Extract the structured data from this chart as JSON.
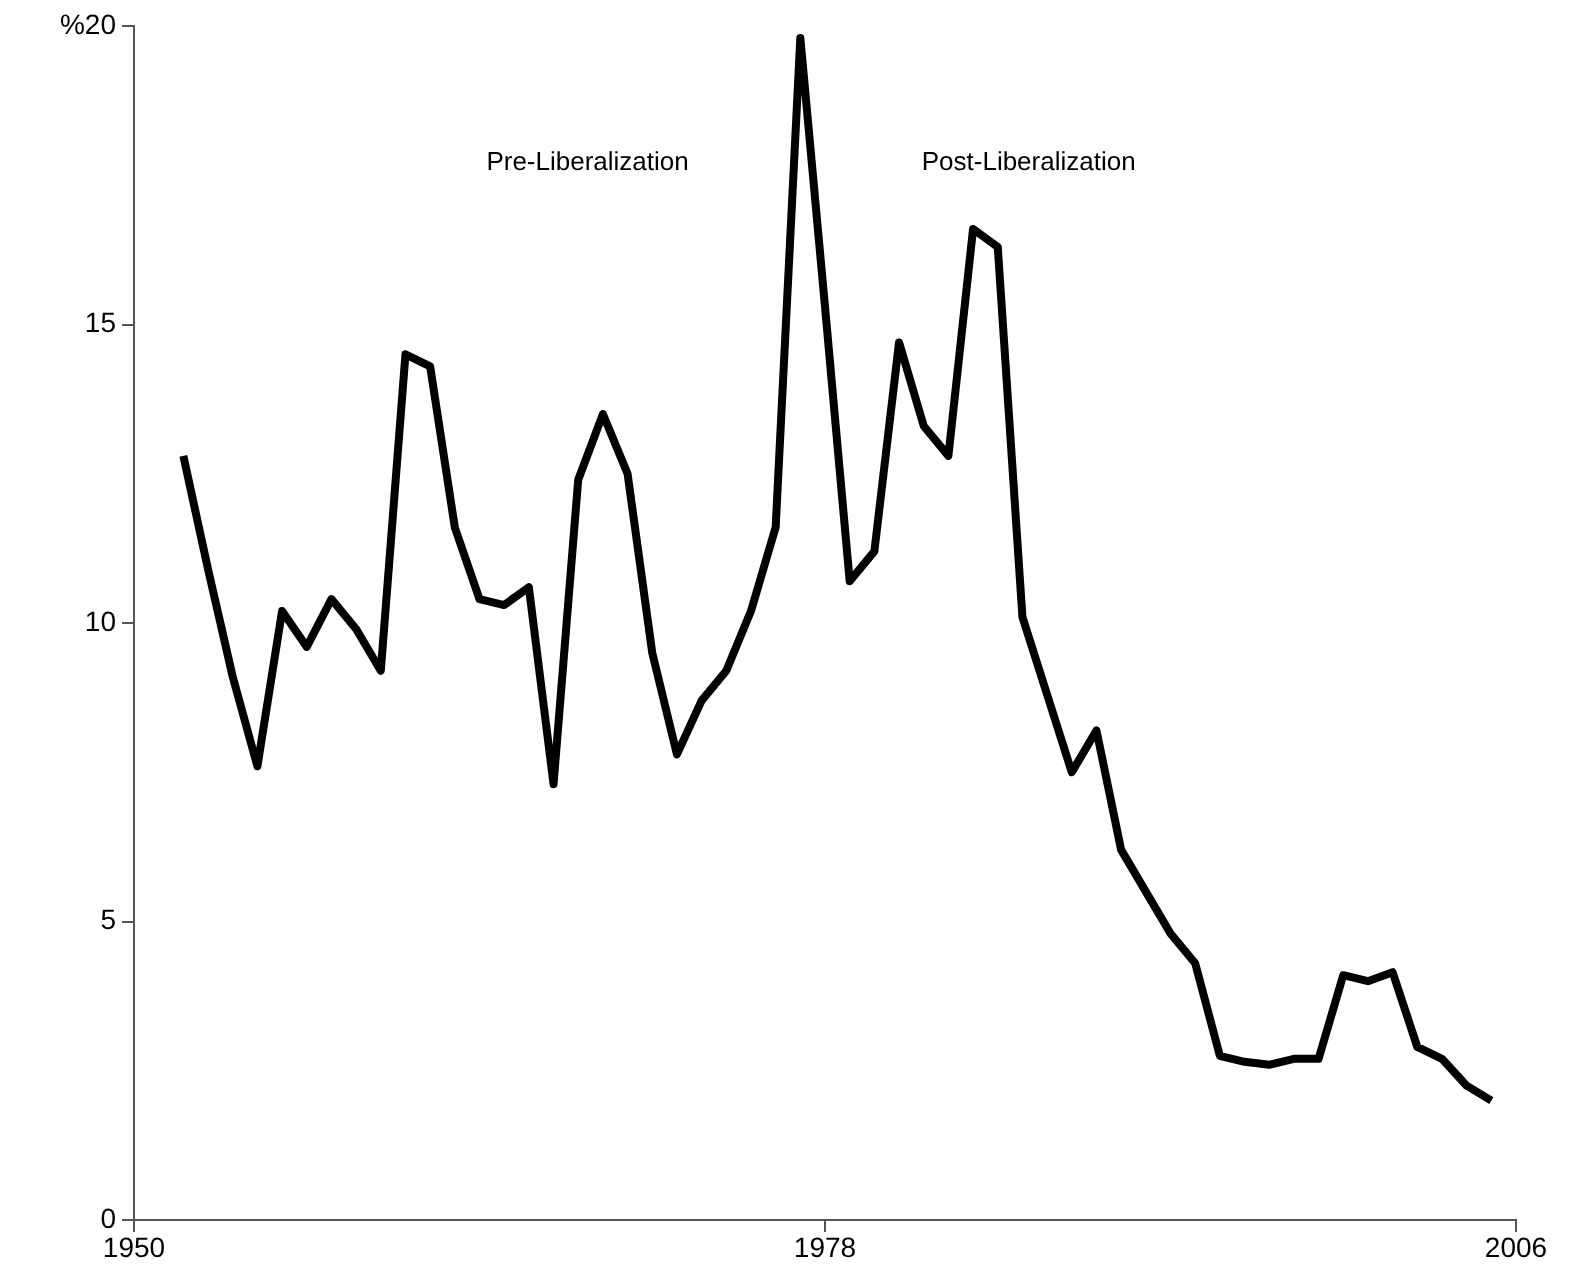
{
  "chart_data": {
    "type": "line",
    "x": [
      1952,
      1953,
      1954,
      1955,
      1956,
      1957,
      1958,
      1959,
      1960,
      1961,
      1962,
      1963,
      1964,
      1965,
      1966,
      1967,
      1968,
      1969,
      1970,
      1971,
      1972,
      1973,
      1974,
      1975,
      1976,
      1977,
      1978,
      1979,
      1980,
      1981,
      1982,
      1983,
      1984,
      1985,
      1986,
      1987,
      1988,
      1989,
      1990,
      1991,
      1992,
      1993,
      1994,
      1995,
      1996,
      1997,
      1998,
      1999,
      2000,
      2001,
      2002,
      2003,
      2004,
      2005
    ],
    "values": [
      12.8,
      10.9,
      9.1,
      7.6,
      10.2,
      9.6,
      10.4,
      9.9,
      9.2,
      14.5,
      14.3,
      11.6,
      10.4,
      10.3,
      10.6,
      7.3,
      12.4,
      13.5,
      12.5,
      9.5,
      7.8,
      8.7,
      9.2,
      10.2,
      11.6,
      19.8,
      15.3,
      10.7,
      11.2,
      14.7,
      13.3,
      12.8,
      16.6,
      16.3,
      10.1,
      8.8,
      7.5,
      8.2,
      6.2,
      5.5,
      4.8,
      4.3,
      2.75,
      2.65,
      2.6,
      2.7,
      2.7,
      4.1,
      4.0,
      4.15,
      2.9,
      2.7,
      2.25,
      2.0
    ],
    "color": "#000000",
    "marker": "none",
    "line_style": "solid",
    "grid": false,
    "legend": false,
    "xlim": [
      1950,
      2006
    ],
    "xticks": [
      1950,
      1978,
      2006
    ],
    "ylim": [
      0,
      20
    ],
    "yticks": [
      0,
      5,
      10,
      15,
      {
        "value": 20,
        "label": "%20"
      }
    ],
    "annotations": [
      "Pre-Liberalization",
      "Post-Liberalization"
    ]
  }
}
